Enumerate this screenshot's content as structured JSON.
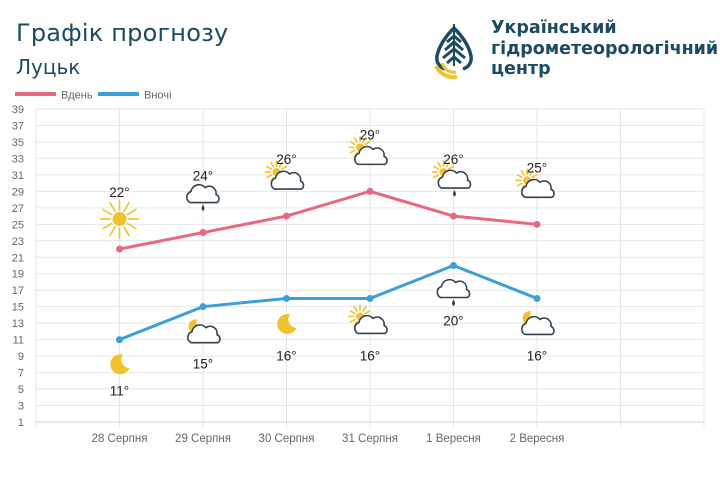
{
  "header": {
    "title": "Графік прогнозу",
    "city": "Луцьк",
    "org_lines": [
      "Український",
      "гідрометеорологічний",
      "центр"
    ]
  },
  "colors": {
    "day": "#e8687f",
    "night": "#3e9fd7",
    "sun": "#f2c12e",
    "text": "#1d4a5f"
  },
  "chart_data": {
    "type": "line",
    "categories": [
      "28 Серпня",
      "29 Серпня",
      "30 Серпня",
      "31 Серпня",
      "1 Вересня",
      "2 Вересня"
    ],
    "series": [
      {
        "name": "Вдень",
        "values": [
          22,
          24,
          26,
          29,
          26,
          25
        ],
        "labels": [
          "22°",
          "24°",
          "26°",
          "29°",
          "26°",
          "25°"
        ],
        "icons": [
          "sun-icon",
          "cloud-rain-icon",
          "partly-cloudy-icon",
          "partly-cloudy-icon",
          "partly-cloudy-rain-icon",
          "partly-cloudy-icon"
        ]
      },
      {
        "name": "Вночі",
        "values": [
          11,
          15,
          16,
          16,
          20,
          16
        ],
        "labels": [
          "11°",
          "15°",
          "16°",
          "16°",
          "20°",
          "16°"
        ],
        "icons": [
          "moon-icon",
          "moon-cloud-icon",
          "moon-icon",
          "partly-cloudy-icon",
          "cloud-rain-icon",
          "moon-cloud-icon"
        ]
      }
    ],
    "yticks": [
      "1",
      "3",
      "5",
      "7",
      "9",
      "11",
      "13",
      "15",
      "17",
      "19",
      "21",
      "23",
      "25",
      "27",
      "29",
      "31",
      "33",
      "35",
      "37",
      "39"
    ],
    "ylim": [
      1,
      39
    ],
    "grid": true,
    "legend": "top-left"
  }
}
